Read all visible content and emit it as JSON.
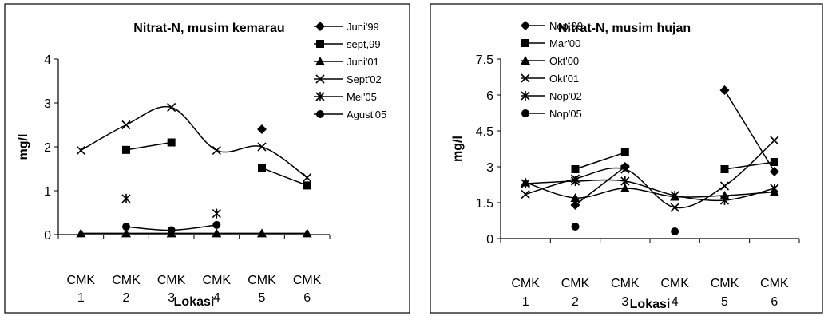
{
  "chart_data": [
    {
      "type": "line",
      "title": "Nitrat-N, musim kemarau",
      "xlabel": "Lokasi",
      "ylabel": "mg/l",
      "ylim": [
        0,
        4
      ],
      "yticks": [
        "0",
        "1",
        "2",
        "3",
        "4"
      ],
      "categories": [
        [
          "CMK",
          "1"
        ],
        [
          "CMK",
          "2"
        ],
        [
          "CMK",
          "3"
        ],
        [
          "CMK",
          "4"
        ],
        [
          "CMK",
          "5"
        ],
        [
          "CMK",
          "6"
        ]
      ],
      "legend_position": "right",
      "series": [
        {
          "name": "Juni'99",
          "marker": "diamond",
          "values": [
            null,
            null,
            null,
            null,
            2.4,
            null
          ]
        },
        {
          "name": "sept,99",
          "marker": "square",
          "values": [
            null,
            1.93,
            2.1,
            null,
            1.52,
            1.12
          ]
        },
        {
          "name": "Juni'01",
          "marker": "triangle",
          "values": [
            0.03,
            0.03,
            0.03,
            0.03,
            0.03,
            0.03
          ]
        },
        {
          "name": "Sept'02",
          "marker": "x",
          "values": [
            1.92,
            2.5,
            2.9,
            1.92,
            2.0,
            1.3
          ]
        },
        {
          "name": "Mei'05",
          "marker": "asterisk",
          "values": [
            null,
            0.82,
            null,
            0.48,
            null,
            null
          ]
        },
        {
          "name": "Agust'05",
          "marker": "circle",
          "values": [
            null,
            0.18,
            0.1,
            0.22,
            null,
            null
          ]
        }
      ]
    },
    {
      "type": "line",
      "title": "Nitrat-N, musim hujan",
      "xlabel": "Lokasi",
      "ylabel": "mg/l",
      "ylim": [
        0,
        7.5
      ],
      "yticks": [
        "0",
        "1.5",
        "3",
        "4.5",
        "6",
        "7.5"
      ],
      "categories": [
        [
          "CMK",
          "1"
        ],
        [
          "CMK",
          "2"
        ],
        [
          "CMK",
          "3"
        ],
        [
          "CMK",
          "4"
        ],
        [
          "CMK",
          "5"
        ],
        [
          "CMK",
          "6"
        ]
      ],
      "legend_position": "top-left",
      "series": [
        {
          "name": "Nop,99",
          "marker": "diamond",
          "values": [
            null,
            1.4,
            3.0,
            null,
            6.2,
            2.8
          ]
        },
        {
          "name": "Mar'00",
          "marker": "square",
          "values": [
            null,
            2.9,
            3.6,
            null,
            2.9,
            3.2
          ]
        },
        {
          "name": "Okt'00",
          "marker": "triangle",
          "values": [
            2.35,
            1.7,
            2.1,
            1.75,
            1.8,
            1.95
          ]
        },
        {
          "name": "Okt'01",
          "marker": "x",
          "values": [
            1.85,
            2.5,
            2.9,
            1.3,
            2.2,
            4.1
          ]
        },
        {
          "name": "Nop'02",
          "marker": "asterisk",
          "values": [
            2.3,
            2.4,
            2.4,
            1.8,
            1.6,
            2.1
          ]
        },
        {
          "name": "Nop'05",
          "marker": "circle",
          "values": [
            null,
            0.5,
            null,
            0.3,
            null,
            null
          ]
        }
      ]
    }
  ]
}
